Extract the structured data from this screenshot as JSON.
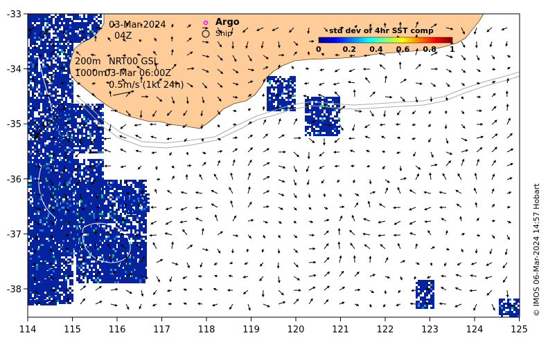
{
  "date_line1": "03-Mar-2024",
  "date_line2": "04Z",
  "argo_label": "Argo",
  "ship_label": "Ship",
  "colorbar": {
    "title": "std dev of 4hr SST comp",
    "ticks": [
      "0",
      "0.2",
      "0.4",
      "0.6",
      "0.8",
      "1"
    ],
    "colors": [
      "#00008f",
      "#0000ff",
      "#0080ff",
      "#00ffff",
      "#80ff80",
      "#ffff00",
      "#ff8000",
      "#ff0000",
      "#800000"
    ]
  },
  "depth_200": "200m",
  "depth_1000": "1000m",
  "product": "NRT00 GSL",
  "valid_time": "03-Mar 06:00Z",
  "scale": "0.5m/s (1kt 24h)",
  "x_ticks": [
    "114",
    "115",
    "116",
    "117",
    "118",
    "119",
    "120",
    "121",
    "122",
    "123",
    "124",
    "125"
  ],
  "y_ticks": [
    "-33",
    "-34",
    "-35",
    "-36",
    "-37",
    "-38"
  ],
  "credit": "© IMOS 06-Mar-2024 14:57 Hobart",
  "colors": {
    "land": "#fdcc99",
    "sst": "#06239f",
    "frame": "#000000"
  }
}
